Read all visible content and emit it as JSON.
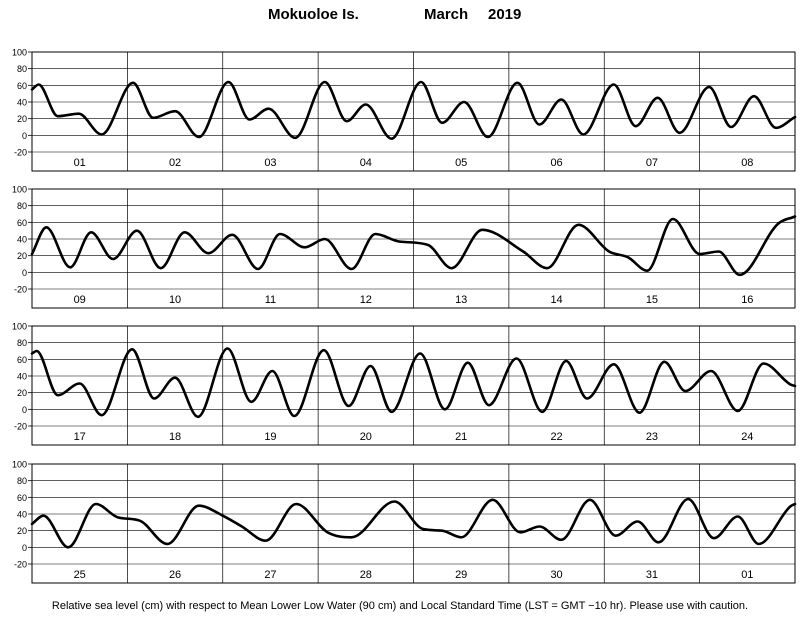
{
  "header": {
    "station": "Mokuoloe Is.",
    "month": "March",
    "year": "2019"
  },
  "footer": {
    "caption": "Relative sea level (cm) with respect to Mean Lower Low Water (90 cm) and Local Standard Time (LST = GMT −10 hr). Please use with caution."
  },
  "chart_data": [
    {
      "type": "line",
      "title": "",
      "xlabel": "",
      "ylabel": "",
      "x_unit": "day (LST)",
      "xlim": [
        0,
        8
      ],
      "ylim": [
        -20,
        100
      ],
      "yticks": [
        -20,
        0,
        20,
        40,
        60,
        80,
        100
      ],
      "grid": "vertical day separators",
      "day_labels": [
        "01",
        "02",
        "03",
        "04",
        "05",
        "06",
        "07",
        "08"
      ],
      "series": [
        {
          "values": [
            [
              0.0,
              55
            ],
            [
              0.07,
              61
            ],
            [
              0.27,
              23
            ],
            [
              0.49,
              26
            ],
            [
              0.73,
              1
            ],
            [
              1.06,
              63
            ],
            [
              1.27,
              21
            ],
            [
              1.5,
              29
            ],
            [
              1.75,
              -2
            ],
            [
              2.06,
              64
            ],
            [
              2.28,
              19
            ],
            [
              2.48,
              32
            ],
            [
              2.76,
              -3
            ],
            [
              3.07,
              64
            ],
            [
              3.3,
              17
            ],
            [
              3.5,
              37
            ],
            [
              3.77,
              -4
            ],
            [
              4.08,
              64
            ],
            [
              4.3,
              15
            ],
            [
              4.53,
              40
            ],
            [
              4.78,
              -2
            ],
            [
              5.09,
              63
            ],
            [
              5.32,
              13
            ],
            [
              5.55,
              43
            ],
            [
              5.78,
              1
            ],
            [
              6.1,
              61
            ],
            [
              6.33,
              11
            ],
            [
              6.56,
              45
            ],
            [
              6.79,
              3
            ],
            [
              7.1,
              58
            ],
            [
              7.33,
              10
            ],
            [
              7.57,
              47
            ],
            [
              7.8,
              9
            ],
            [
              8.0,
              22
            ]
          ]
        }
      ]
    },
    {
      "type": "line",
      "title": "",
      "xlabel": "",
      "ylabel": "",
      "x_unit": "day (LST)",
      "xlim": [
        0,
        8
      ],
      "ylim": [
        -20,
        100
      ],
      "yticks": [
        -20,
        0,
        20,
        40,
        60,
        80,
        100
      ],
      "grid": "vertical day separators",
      "day_labels": [
        "09",
        "10",
        "11",
        "12",
        "13",
        "14",
        "15",
        "16"
      ],
      "series": [
        {
          "values": [
            [
              0.0,
              22
            ],
            [
              0.15,
              54
            ],
            [
              0.4,
              6
            ],
            [
              0.62,
              48
            ],
            [
              0.85,
              16
            ],
            [
              1.1,
              50
            ],
            [
              1.35,
              5
            ],
            [
              1.6,
              48
            ],
            [
              1.85,
              23
            ],
            [
              2.1,
              45
            ],
            [
              2.37,
              4
            ],
            [
              2.6,
              46
            ],
            [
              2.86,
              30
            ],
            [
              3.07,
              40
            ],
            [
              3.35,
              4
            ],
            [
              3.6,
              46
            ],
            [
              3.85,
              37
            ],
            [
              4.15,
              33
            ],
            [
              4.4,
              5
            ],
            [
              4.72,
              51
            ],
            [
              5.15,
              25
            ],
            [
              5.4,
              5
            ],
            [
              5.73,
              57
            ],
            [
              6.05,
              25
            ],
            [
              6.25,
              18
            ],
            [
              6.45,
              2
            ],
            [
              6.72,
              64
            ],
            [
              7.0,
              22
            ],
            [
              7.2,
              25
            ],
            [
              7.42,
              -3
            ],
            [
              7.82,
              58
            ],
            [
              8.0,
              67
            ]
          ]
        }
      ]
    },
    {
      "type": "line",
      "title": "",
      "xlabel": "",
      "ylabel": "",
      "x_unit": "day (LST)",
      "xlim": [
        0,
        8
      ],
      "ylim": [
        -20,
        100
      ],
      "yticks": [
        -20,
        0,
        20,
        40,
        60,
        80,
        100
      ],
      "grid": "vertical day separators",
      "day_labels": [
        "17",
        "18",
        "19",
        "20",
        "21",
        "22",
        "23",
        "24"
      ],
      "series": [
        {
          "values": [
            [
              0.0,
              67
            ],
            [
              0.05,
              70
            ],
            [
              0.27,
              17
            ],
            [
              0.5,
              31
            ],
            [
              0.73,
              -7
            ],
            [
              1.05,
              72
            ],
            [
              1.28,
              13
            ],
            [
              1.5,
              38
            ],
            [
              1.74,
              -9
            ],
            [
              2.05,
              73
            ],
            [
              2.3,
              9
            ],
            [
              2.52,
              46
            ],
            [
              2.75,
              -8
            ],
            [
              3.06,
              71
            ],
            [
              3.32,
              4
            ],
            [
              3.55,
              52
            ],
            [
              3.77,
              -3
            ],
            [
              4.07,
              67
            ],
            [
              4.33,
              0
            ],
            [
              4.57,
              56
            ],
            [
              4.79,
              5
            ],
            [
              5.08,
              61
            ],
            [
              5.35,
              -3
            ],
            [
              5.6,
              58
            ],
            [
              5.82,
              13
            ],
            [
              6.1,
              54
            ],
            [
              6.37,
              -4
            ],
            [
              6.63,
              57
            ],
            [
              6.85,
              22
            ],
            [
              7.12,
              46
            ],
            [
              7.4,
              -2
            ],
            [
              7.67,
              55
            ],
            [
              7.95,
              30
            ],
            [
              8.0,
              28
            ]
          ]
        }
      ]
    },
    {
      "type": "line",
      "title": "",
      "xlabel": "",
      "ylabel": "",
      "x_unit": "day (LST)",
      "xlim": [
        0,
        8
      ],
      "ylim": [
        -20,
        100
      ],
      "yticks": [
        -20,
        0,
        20,
        40,
        60,
        80,
        100
      ],
      "grid": "vertical day separators",
      "day_labels": [
        "25",
        "26",
        "27",
        "28",
        "29",
        "30",
        "31",
        "01"
      ],
      "series": [
        {
          "values": [
            [
              0.0,
              28
            ],
            [
              0.12,
              38
            ],
            [
              0.38,
              0
            ],
            [
              0.67,
              52
            ],
            [
              0.9,
              36
            ],
            [
              1.13,
              32
            ],
            [
              1.42,
              4
            ],
            [
              1.75,
              50
            ],
            [
              2.0,
              38
            ],
            [
              2.2,
              25
            ],
            [
              2.45,
              8
            ],
            [
              2.77,
              52
            ],
            [
              3.1,
              18
            ],
            [
              3.35,
              12
            ],
            [
              3.8,
              55
            ],
            [
              4.1,
              22
            ],
            [
              4.3,
              20
            ],
            [
              4.5,
              12
            ],
            [
              4.83,
              57
            ],
            [
              5.12,
              18
            ],
            [
              5.32,
              25
            ],
            [
              5.55,
              9
            ],
            [
              5.85,
              57
            ],
            [
              6.12,
              14
            ],
            [
              6.35,
              31
            ],
            [
              6.57,
              6
            ],
            [
              6.88,
              58
            ],
            [
              7.15,
              11
            ],
            [
              7.4,
              37
            ],
            [
              7.62,
              4
            ],
            [
              7.95,
              49
            ],
            [
              8.0,
              52
            ]
          ]
        }
      ]
    }
  ]
}
